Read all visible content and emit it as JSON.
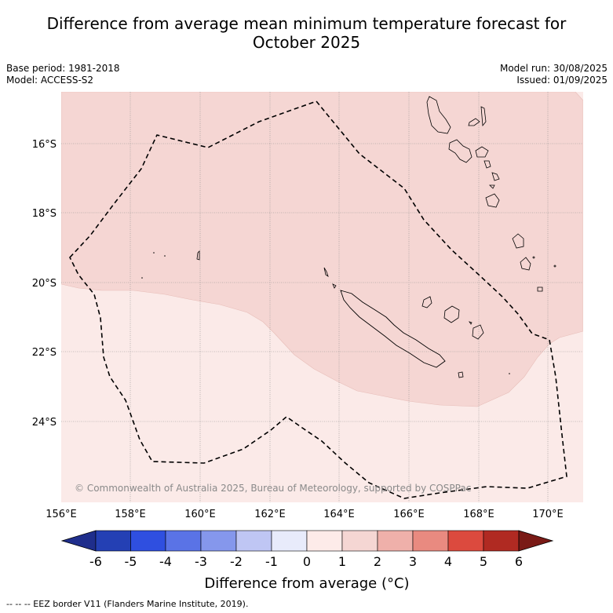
{
  "header": {
    "title_line1": "Difference from average mean minimum temperature forecast for",
    "title_line2": "October 2025",
    "base_period": "Base period: 1981-2018",
    "model": "Model: ACCESS-S2",
    "model_run": "Model run: 30/08/2025",
    "issued": "Issued: 01/09/2025"
  },
  "map": {
    "lon_ticks": [
      "156°E",
      "158°E",
      "160°E",
      "162°E",
      "164°E",
      "166°E",
      "168°E",
      "170°E"
    ],
    "lat_ticks": [
      "16°S",
      "18°S",
      "20°S",
      "22°S",
      "24°S"
    ],
    "copyright": "© Commonwealth of Australia 2025, Bureau of Meteorology, supported by COSPPac",
    "colors": {
      "anomaly_1_2": "#f5d6d3",
      "anomaly_0_1": "#fbeae8"
    }
  },
  "colorbar": {
    "ticks": [
      "-6",
      "-5",
      "-4",
      "-3",
      "-2",
      "-1",
      "0",
      "1",
      "2",
      "3",
      "4",
      "5",
      "6"
    ],
    "colors": [
      "#1f2e8c",
      "#2440b4",
      "#2f4fe0",
      "#5a73e6",
      "#8597ec",
      "#bfc6f4",
      "#e8ebfb",
      "#fdebe9",
      "#f5d6d3",
      "#efb0aa",
      "#e98a80",
      "#dc4a3e",
      "#b02a22",
      "#7a1a16"
    ],
    "label": "Difference from average (°C)"
  },
  "footnote": "--  --  -- EEZ border V11 (Flanders Marine Institute, 2019)."
}
